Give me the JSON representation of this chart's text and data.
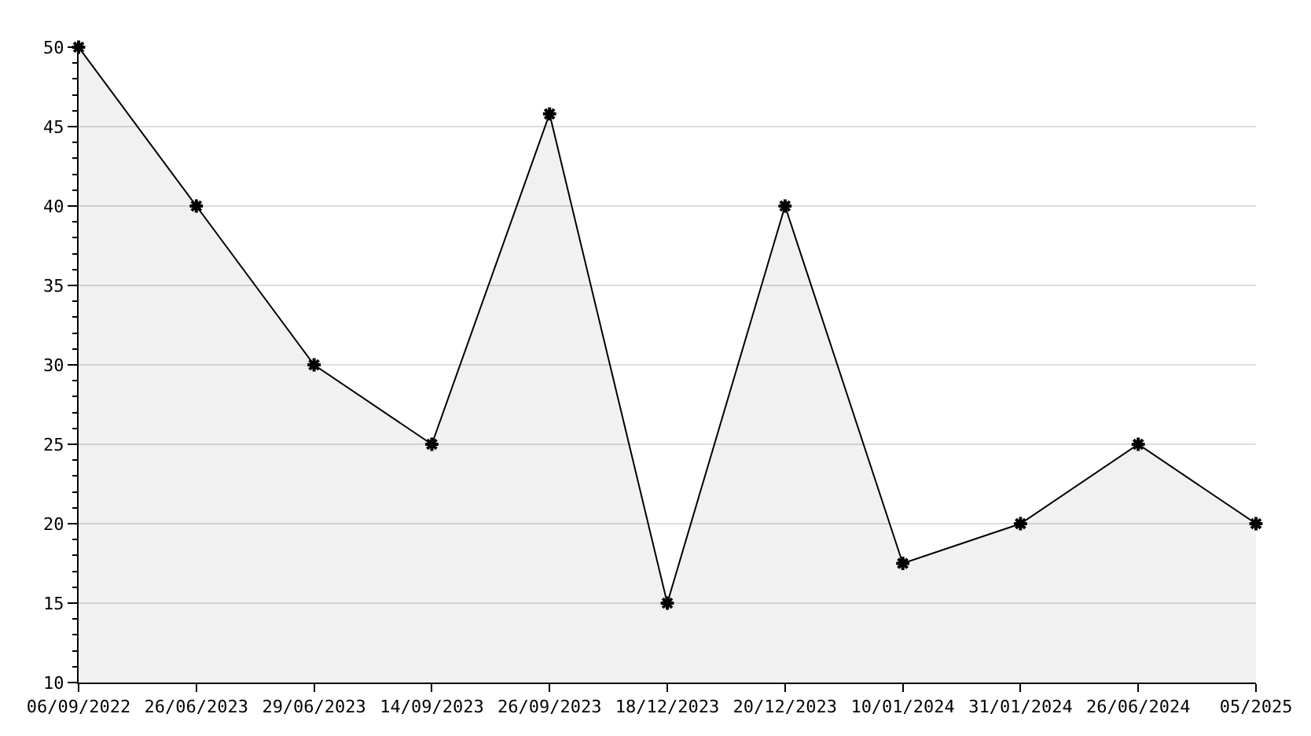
{
  "chart_data": {
    "type": "area",
    "categories": [
      "06/09/2022",
      "26/06/2023",
      "29/06/2023",
      "14/09/2023",
      "26/09/2023",
      "18/12/2023",
      "20/12/2023",
      "10/01/2024",
      "31/01/2024",
      "26/06/2024",
      "05/2025"
    ],
    "series": [
      {
        "color": "#000000",
        "values": [
          50,
          40,
          30,
          25,
          45.8,
          15,
          40,
          17.5,
          20,
          25,
          20
        ]
      }
    ],
    "ylim": [
      10,
      50
    ],
    "yticks": [
      10,
      15,
      20,
      25,
      30,
      35,
      40,
      45,
      50
    ],
    "grid": "y",
    "marker": "cross",
    "line_style": "solid"
  }
}
